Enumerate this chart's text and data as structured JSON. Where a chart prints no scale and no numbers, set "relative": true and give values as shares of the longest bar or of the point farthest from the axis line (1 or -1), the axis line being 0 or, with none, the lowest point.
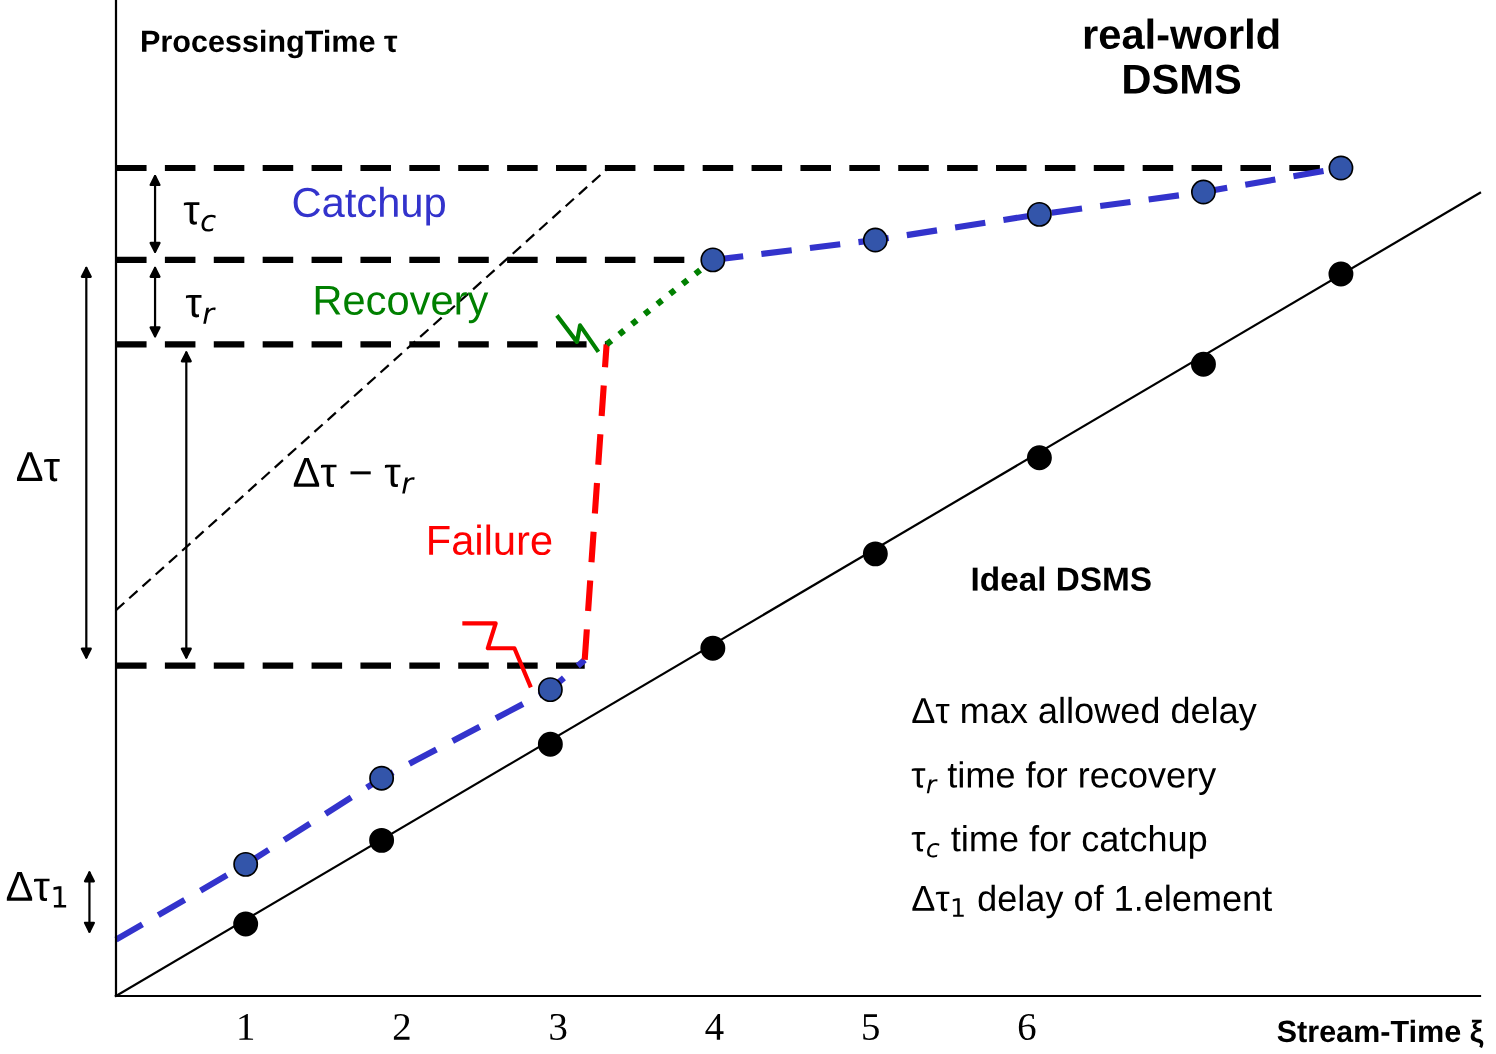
{
  "chart_data": {
    "type": "line",
    "relative": true,
    "xlabel": "Stream-Time ξ",
    "ylabel": "ProcessingTime τ",
    "xlim": [
      0.17,
      8.9
    ],
    "xticks": [
      1,
      2,
      3,
      4,
      5,
      6
    ],
    "grid": false,
    "series": [
      {
        "color": "#000000",
        "line_style": "solid",
        "x": [
          0.17,
          8.9
        ],
        "values": [
          0,
          0.97
        ]
      },
      {
        "type": "line",
        "color": "#000000",
        "line_style": "dashed",
        "x": [
          0.17,
          3.32
        ],
        "values": [
          0.466,
          1.0
        ]
      },
      {
        "type": "line",
        "color": "#000000",
        "line_style": "dashed",
        "x": [
          0.17,
          8.01
        ],
        "values": [
          1.0,
          1.0
        ]
      },
      {
        "type": "line",
        "color": "#000000",
        "line_style": "dashed",
        "x": [
          0.17,
          3.99
        ],
        "values": [
          0.889,
          0.889
        ]
      },
      {
        "type": "line",
        "color": "#000000",
        "line_style": "dashed",
        "x": [
          0.17,
          3.31
        ],
        "values": [
          0.787,
          0.787
        ]
      },
      {
        "type": "line",
        "color": "#000000",
        "line_style": "dashed",
        "x": [
          0.17,
          3.17
        ],
        "values": [
          0.399,
          0.399
        ]
      },
      {
        "type": "line",
        "color": "#3333cc",
        "line_style": "dashed",
        "x": [
          0.17,
          1.0,
          1.87,
          2.95,
          3.17
        ],
        "values": [
          0.068,
          0.159,
          0.263,
          0.37,
          0.406
        ]
      },
      {
        "type": "line",
        "color": "#3333cc",
        "line_style": "dashed",
        "x": [
          3.99,
          5.03,
          6.08,
          7.13,
          8.01
        ],
        "values": [
          0.889,
          0.913,
          0.944,
          0.971,
          1.0
        ]
      },
      {
        "type": "line",
        "color": "#ff0000",
        "line_style": "dashed",
        "x": [
          3.17,
          3.31
        ],
        "values": [
          0.406,
          0.787
        ]
      },
      {
        "type": "line",
        "color": "#008000",
        "line_style": "dotted",
        "x": [
          3.31,
          3.99
        ],
        "values": [
          0.787,
          0.889
        ]
      },
      {
        "type": "scatter",
        "color": "#3355aa",
        "marker": "circle",
        "x": [
          1.0,
          1.87,
          2.95,
          3.99,
          5.03,
          6.08,
          7.13,
          8.01
        ],
        "values": [
          0.159,
          0.263,
          0.37,
          0.889,
          0.913,
          0.944,
          0.971,
          1.0
        ]
      },
      {
        "type": "scatter",
        "color": "#000000",
        "marker": "circle",
        "x": [
          1.0,
          1.87,
          2.95,
          3.99,
          5.03,
          6.08,
          7.13,
          8.01
        ],
        "values": [
          0.087,
          0.188,
          0.304,
          0.42,
          0.534,
          0.65,
          0.763,
          0.872
        ]
      }
    ],
    "annotations": [
      "real-world\nDSMS",
      "Ideal DSMS",
      "Catchup",
      "Recovery",
      "Failure",
      "τ$_{c}$",
      "τ$_{r}$",
      "Δτ",
      "Δτ − τ$_{r}$",
      "Δτ$_{1}$",
      "Δτ max allowed delay",
      "τ$_{r}$ time for recovery",
      "τ$_{c}$ time for catchup",
      "Δτ$_{1}$ delay of 1.element"
    ]
  }
}
